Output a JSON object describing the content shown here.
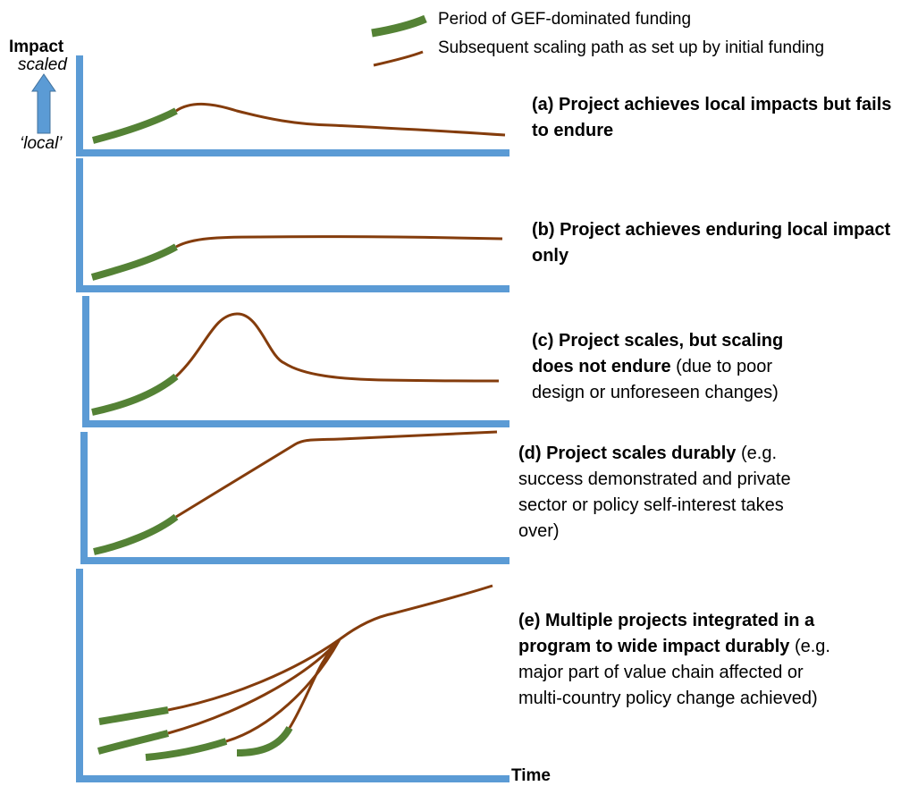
{
  "legend": {
    "green_label": "Period of GEF-dominated funding",
    "brown_label": "Subsequent scaling path as set up by initial funding"
  },
  "y_axis": {
    "title": "Impact",
    "top_label": "scaled",
    "bottom_label": "‘local’"
  },
  "x_axis": {
    "title": "Time"
  },
  "panels": [
    {
      "bold": "(a) Project achieves local impacts but fails to endure",
      "normal": ""
    },
    {
      "bold": "(b) Project achieves enduring local impact only",
      "normal": ""
    },
    {
      "bold": "(c) Project scales, but scaling does not endure",
      "normal": " (due to poor design or unforeseen changes)"
    },
    {
      "bold": "(d) Project scales durably",
      "normal": " (e.g. success demonstrated and private sector or policy self-interest takes over)"
    },
    {
      "bold": "(e) Multiple projects integrated in a program to wide impact durably",
      "normal": " (e.g. major part of value chain affected or multi-country policy change achieved)"
    }
  ],
  "colors": {
    "axis": "#5b9bd5",
    "funding": "#548235",
    "path": "#843c0c"
  }
}
